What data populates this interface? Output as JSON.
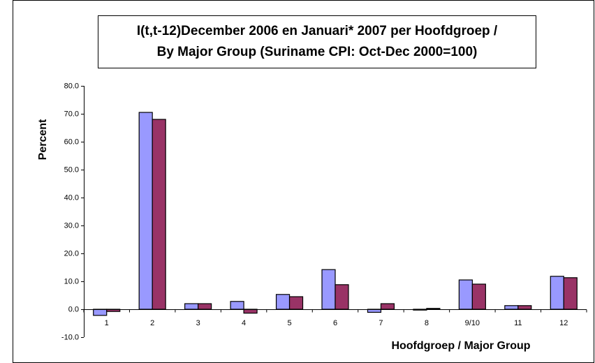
{
  "chart_data": {
    "type": "bar",
    "title": [
      "I(t,t-12)December 2006 en Januari* 2007 per Hoofdgroep /",
      "By Major Group (Suriname CPI: Oct-Dec 2000=100)"
    ],
    "y_label": "Percent",
    "x_label": "Hoofdgroep / Major Group",
    "categories": [
      "1",
      "2",
      "3",
      "4",
      "5",
      "6",
      "7",
      "8",
      "9/10",
      "11",
      "12"
    ],
    "series": [
      {
        "color": "#9999ff",
        "values": [
          -2.2,
          70.5,
          2.0,
          2.8,
          5.3,
          14.2,
          -1.1,
          -0.3,
          10.5,
          1.3,
          11.8
        ]
      },
      {
        "color": "#993366",
        "values": [
          -0.8,
          68.0,
          2.0,
          -1.4,
          4.5,
          8.8,
          2.0,
          0.3,
          9.0,
          1.3,
          11.3
        ]
      }
    ],
    "ylim": [
      -10,
      80
    ],
    "yticks": [
      {
        "value": -10,
        "label": "-10.0"
      },
      {
        "value": 0,
        "label": "0.0"
      },
      {
        "value": 10,
        "label": "10.0"
      },
      {
        "value": 20,
        "label": "20.0"
      },
      {
        "value": 30,
        "label": "30.0"
      },
      {
        "value": 40,
        "label": "40.0"
      },
      {
        "value": 50,
        "label": "50.0"
      },
      {
        "value": 60,
        "label": "60.0"
      },
      {
        "value": 70,
        "label": "70.0"
      },
      {
        "value": 80,
        "label": "80.0"
      }
    ],
    "grid": false
  }
}
